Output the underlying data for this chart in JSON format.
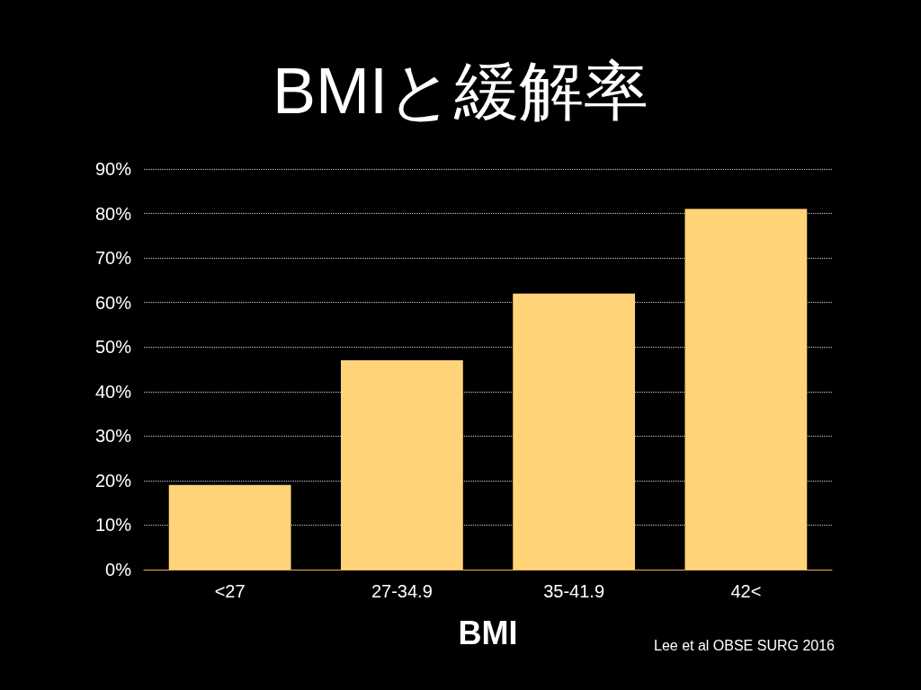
{
  "chart_data": {
    "type": "bar",
    "title": "BMIと緩解率",
    "xlabel": "BMI",
    "categories": [
      "<27",
      "27-34.9",
      "35-41.9",
      "42<"
    ],
    "values": [
      19,
      47,
      62,
      81
    ],
    "color": "#ffd479",
    "ylim": [
      0,
      90
    ],
    "yticks": [
      {
        "value": 0,
        "label": "0%"
      },
      {
        "value": 10,
        "label": "10%"
      },
      {
        "value": 20,
        "label": "20%"
      },
      {
        "value": 30,
        "label": "30%"
      },
      {
        "value": 40,
        "label": "40%"
      },
      {
        "value": 50,
        "label": "50%"
      },
      {
        "value": 60,
        "label": "60%"
      },
      {
        "value": 70,
        "label": "70%"
      },
      {
        "value": 80,
        "label": "80%"
      },
      {
        "value": 90,
        "label": "90%"
      }
    ],
    "grid": true,
    "line_style": "dotted",
    "annotations": [
      "Lee et al OBSE SURG 2016"
    ]
  }
}
